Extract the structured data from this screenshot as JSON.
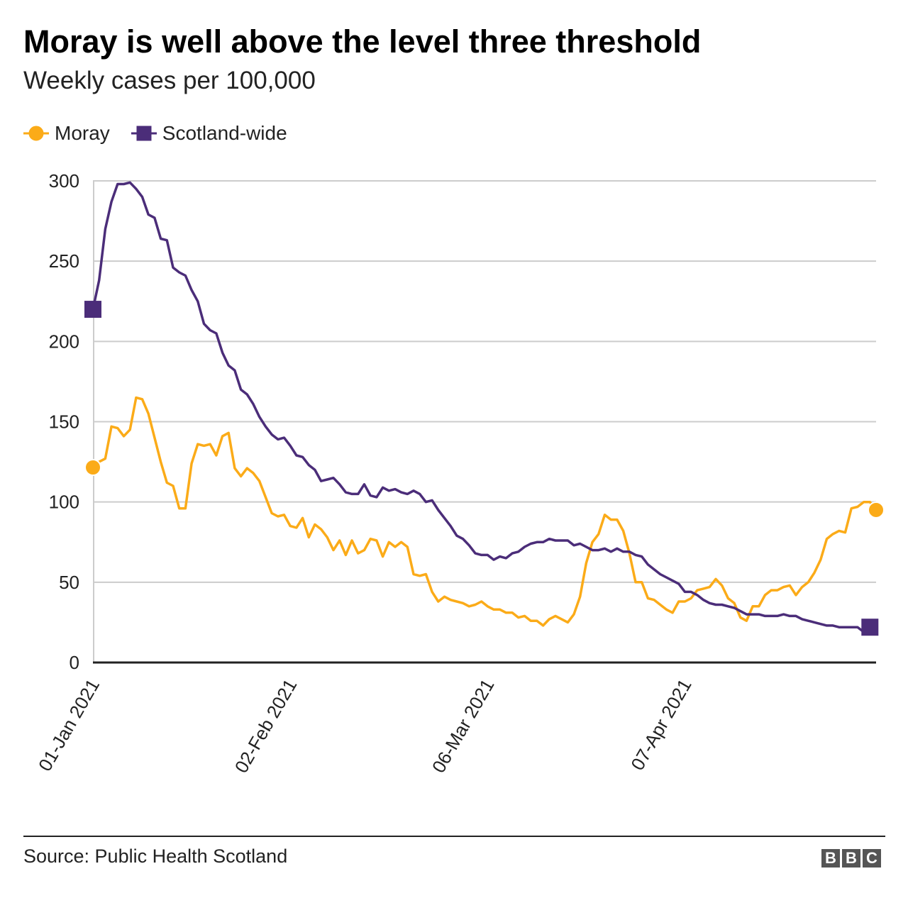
{
  "chart_data": {
    "type": "line",
    "title": "Moray is well above the level three threshold",
    "subtitle": "Weekly cases per 100,000",
    "source": "Source: Public Health Scotland",
    "logo": "BBC",
    "x_start_date": "01-Jan 2021",
    "x_tick_labels": [
      "01-Jan 2021",
      "02-Feb 2021",
      "06-Mar 2021",
      "07-Apr 2021"
    ],
    "x_tick_days": [
      0,
      32,
      64,
      96
    ],
    "y_ticks": [
      0,
      50,
      100,
      150,
      200,
      250,
      300
    ],
    "ylim": [
      0,
      300
    ],
    "grid": true,
    "legend_position": "top-left",
    "series": [
      {
        "name": "Moray",
        "color": "#fbab18",
        "marker": "circle",
        "values": [
          121.5,
          125,
          127,
          147,
          146,
          141,
          145,
          165,
          164,
          155,
          140,
          125,
          112,
          110,
          96,
          96,
          124,
          136,
          135,
          136,
          129,
          141,
          143,
          121,
          116,
          121,
          118,
          113,
          103,
          93,
          91,
          92,
          85,
          84,
          90,
          78,
          86,
          83,
          78,
          70,
          76,
          67,
          76,
          68,
          70,
          77,
          76,
          66,
          75,
          72,
          75,
          72,
          55,
          54,
          55,
          44,
          38,
          41,
          39,
          38,
          37,
          35,
          36,
          38,
          35,
          33,
          33,
          31,
          31,
          28,
          29,
          26,
          26,
          23,
          27,
          29,
          27,
          25,
          30,
          41,
          62,
          75,
          80,
          92,
          89,
          89,
          82,
          68,
          50,
          50,
          40,
          39,
          36,
          33,
          31,
          38,
          38,
          40,
          45,
          46,
          47,
          52,
          48,
          40,
          37,
          28,
          26,
          35,
          35,
          42,
          45,
          45,
          47,
          48,
          42,
          47,
          50,
          56,
          64,
          77,
          80,
          82,
          81,
          96,
          97,
          100,
          100,
          95
        ]
      },
      {
        "name": "Scotland-wide",
        "color": "#4b2d79",
        "marker": "square",
        "values": [
          220,
          238,
          270,
          287,
          298,
          298,
          299,
          295,
          290,
          279,
          277,
          264,
          263,
          246,
          243,
          241,
          232,
          225,
          211,
          207,
          205,
          193,
          185,
          182,
          170,
          167,
          161,
          153,
          147,
          142,
          139,
          140,
          135,
          129,
          128,
          123,
          120,
          113,
          114,
          115,
          111,
          106,
          105,
          105,
          111,
          104,
          103,
          109,
          107,
          108,
          106,
          105,
          107,
          105,
          100,
          101,
          95,
          90,
          85,
          79,
          77,
          73,
          68,
          67,
          67,
          64,
          66,
          65,
          68,
          69,
          72,
          74,
          75,
          75,
          77,
          76,
          76,
          76,
          73,
          74,
          72,
          70,
          70,
          71,
          69,
          71,
          69,
          69,
          67,
          66,
          61,
          58,
          55,
          53,
          51,
          49,
          44,
          44,
          42,
          39,
          37,
          36,
          36,
          35,
          34,
          32,
          30,
          30,
          30,
          29,
          29,
          29,
          30,
          29,
          29,
          27,
          26,
          25,
          24,
          23,
          23,
          22,
          22,
          22,
          22,
          19,
          22
        ]
      }
    ]
  }
}
